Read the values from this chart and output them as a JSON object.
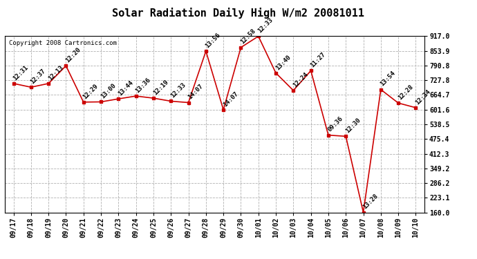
{
  "title": "Solar Radiation Daily High W/m2 20081011",
  "copyright": "Copyright 2008 Cartronics.com",
  "x_labels": [
    "09/17",
    "09/18",
    "09/19",
    "09/20",
    "09/21",
    "09/22",
    "09/23",
    "09/24",
    "09/25",
    "09/26",
    "09/27",
    "09/28",
    "09/29",
    "09/30",
    "10/01",
    "10/02",
    "10/03",
    "10/04",
    "10/05",
    "10/06",
    "10/07",
    "10/08",
    "10/09",
    "10/10"
  ],
  "y_values": [
    714,
    698,
    714,
    790,
    634,
    635,
    648,
    660,
    651,
    638,
    632,
    853,
    601,
    869,
    917,
    759,
    684,
    769,
    492,
    487,
    160,
    688,
    630,
    610
  ],
  "point_labels": [
    "12:31",
    "12:37",
    "12:13",
    "12:20",
    "12:29",
    "13:00",
    "13:44",
    "13:36",
    "12:19",
    "12:33",
    "14:07",
    "13:56",
    "14:07",
    "12:58",
    "12:33",
    "13:40",
    "12:24",
    "11:27",
    "09:36",
    "12:30",
    "13:28",
    "13:54",
    "12:28",
    "12:34"
  ],
  "line_color": "#cc0000",
  "marker_color": "#cc0000",
  "bg_color": "#ffffff",
  "grid_color": "#b0b0b0",
  "ylim_min": 160.0,
  "ylim_max": 917.0,
  "ytick_values": [
    160.0,
    223.1,
    286.2,
    349.2,
    412.3,
    475.4,
    538.5,
    601.6,
    664.7,
    727.8,
    790.8,
    853.9,
    917.0
  ],
  "title_fontsize": 11,
  "label_fontsize": 6.5,
  "tick_fontsize": 7,
  "copyright_fontsize": 6.5
}
